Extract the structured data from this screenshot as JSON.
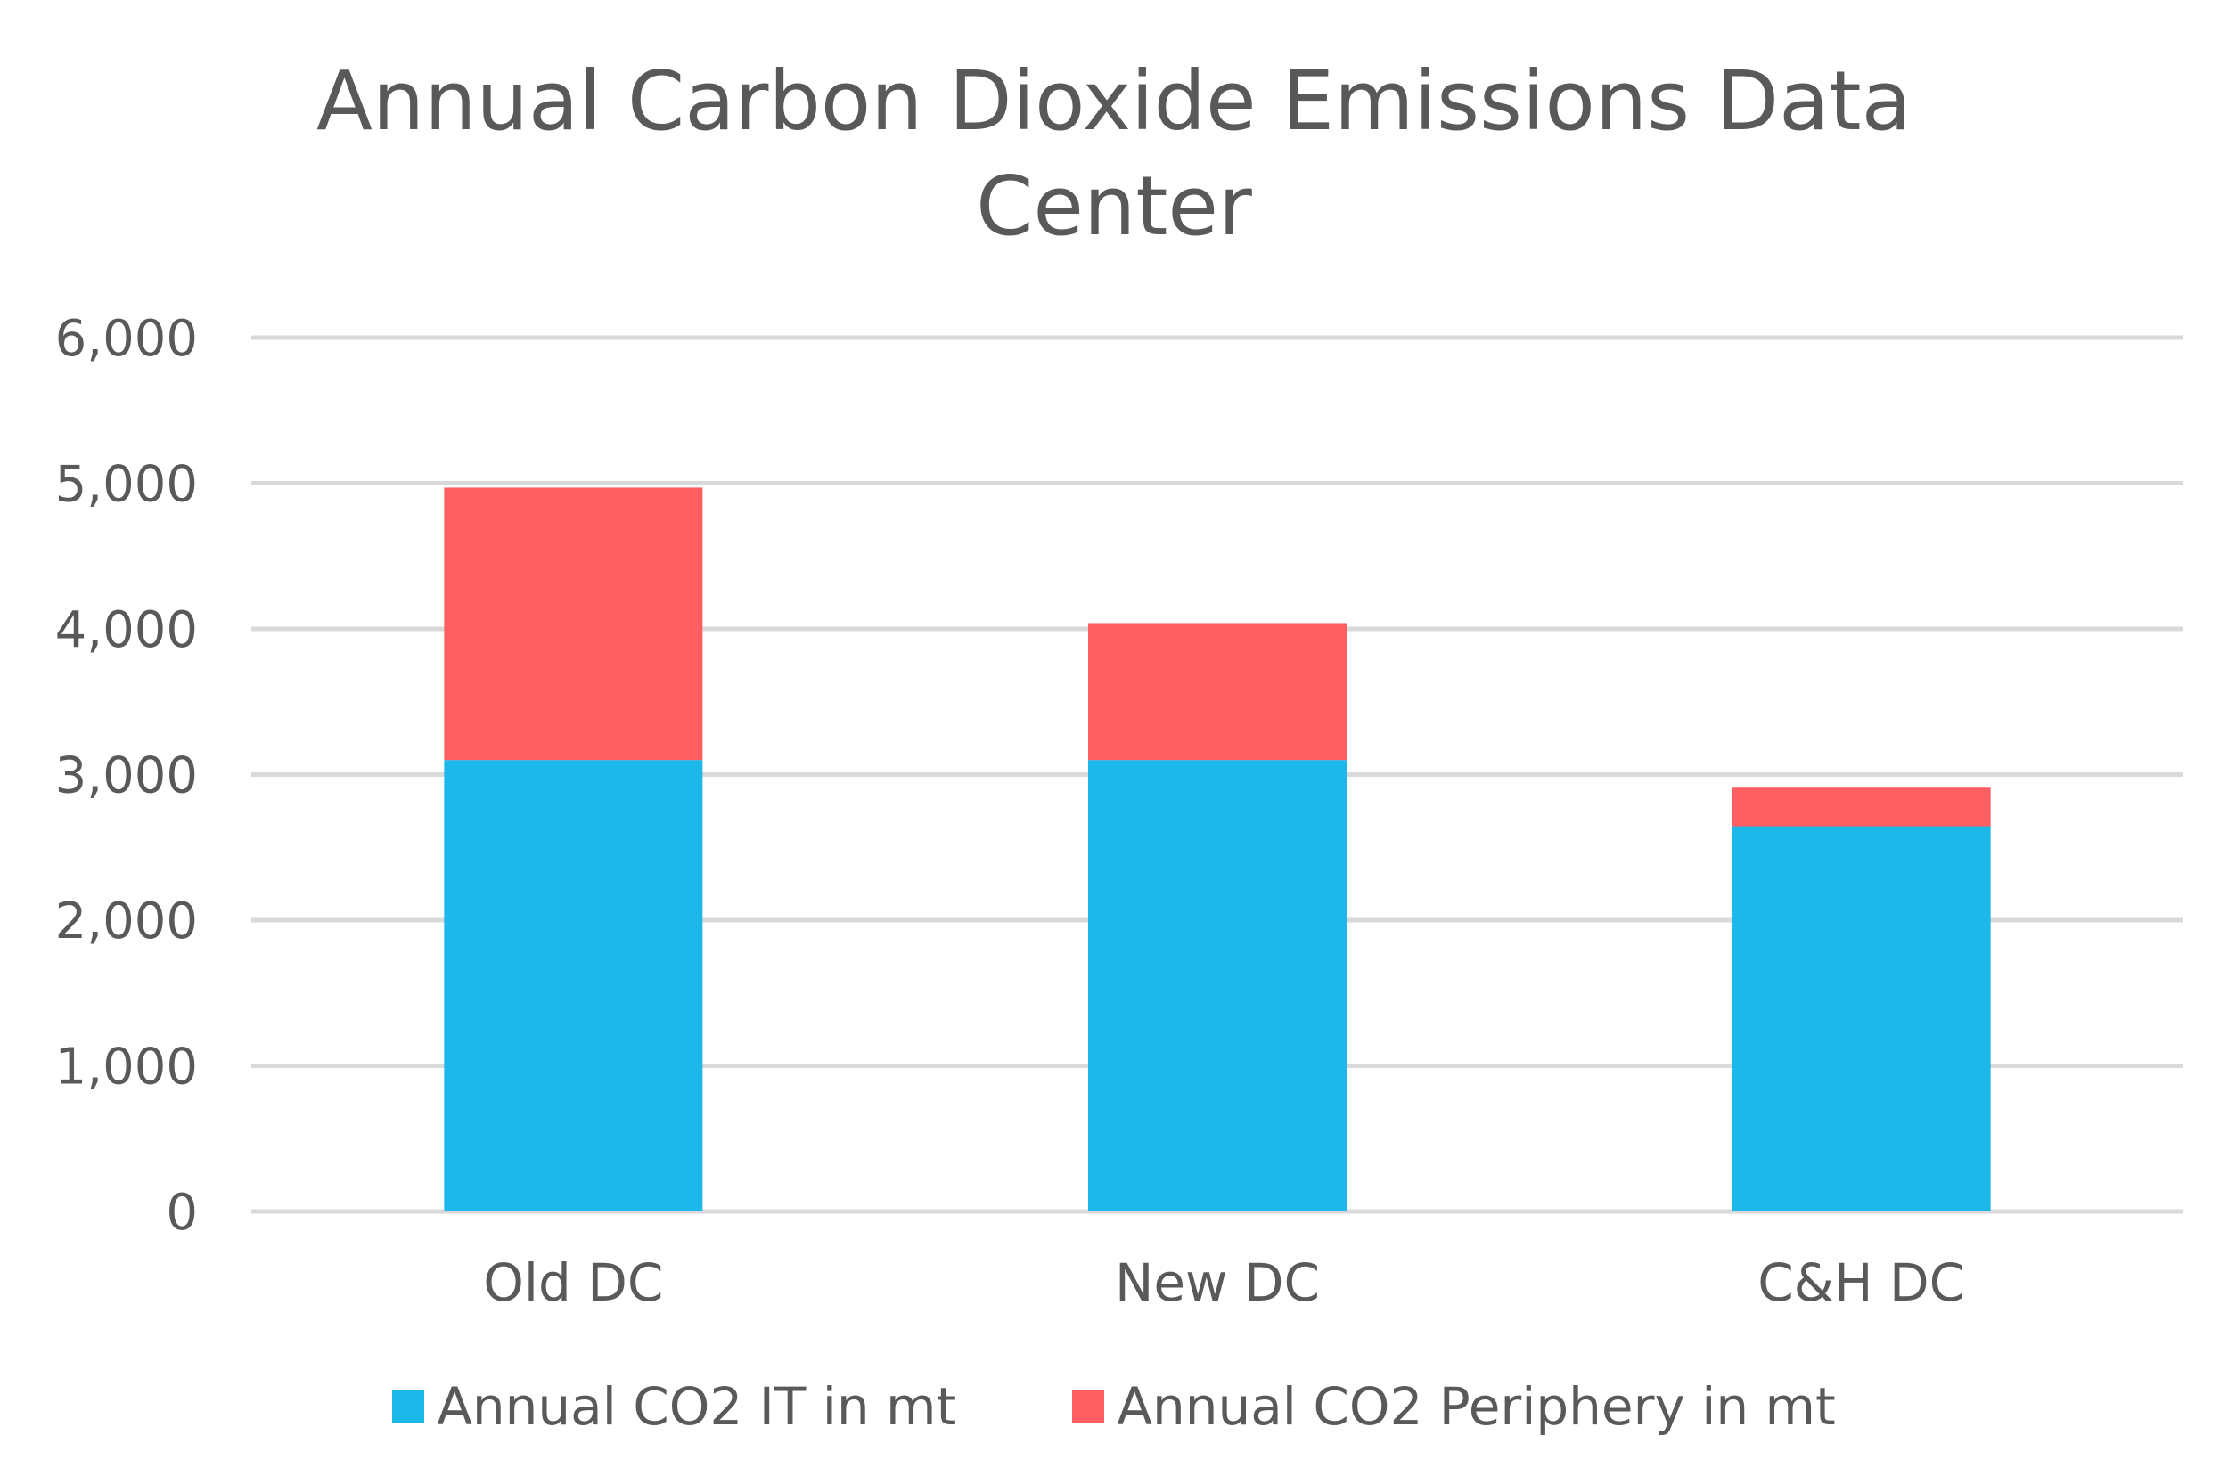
{
  "chart_data": {
    "type": "bar",
    "stacked": true,
    "title_lines": [
      "Annual Carbon Dioxide Emissions Data",
      "Center"
    ],
    "xlabel": "",
    "ylabel": "",
    "categories": [
      "Old DC",
      "New DC",
      "C&H DC"
    ],
    "series": [
      {
        "name": "Annual CO2 IT in mt",
        "color": "#1DB8EA",
        "values": [
          3100,
          3100,
          2645
        ]
      },
      {
        "name": "Annual CO2 Periphery in mt",
        "color": "#FF5F63",
        "values": [
          1870,
          940,
          265
        ]
      }
    ],
    "ylim": [
      0,
      6000
    ],
    "yticks": [
      0,
      1000,
      2000,
      3000,
      4000,
      5000,
      6000
    ],
    "ytick_labels": [
      "0",
      "1,000",
      "2,000",
      "3,000",
      "4,000",
      "5,000",
      "6,000"
    ],
    "grid": true,
    "legend": "bottom"
  }
}
